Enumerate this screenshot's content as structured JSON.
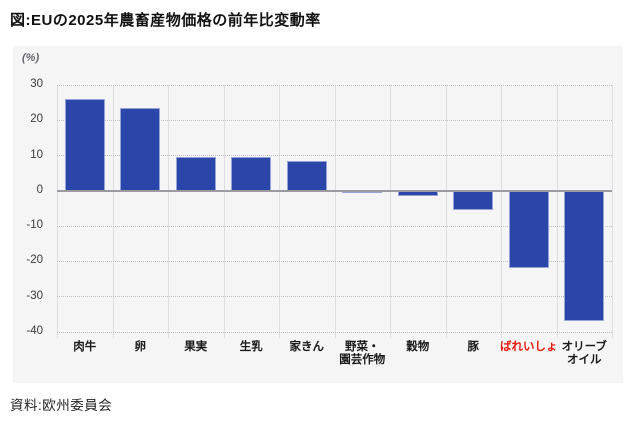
{
  "page": {
    "title": "図:EUの2025年農畜産物価格の前年比変動率",
    "source": "資料:欧州委員会"
  },
  "colors": {
    "bar_fill": "#2b46a8",
    "bar_border": "#97a3d6",
    "highlight_label": "#e8190f",
    "category_label": "#1a1a1a",
    "panel_background": "#f5f5f6"
  },
  "chart_data": {
    "type": "bar",
    "title": "図:EUの2025年農畜産物価格の前年比変動率",
    "unit_label": "(%)",
    "categories": [
      "肉牛",
      "卵",
      "果実",
      "生乳",
      "家きん",
      "野菜・\n園芸作物",
      "穀物",
      "豚",
      "ばれいしょ",
      "オリーブ\nオイル"
    ],
    "values": [
      26,
      23.5,
      9.5,
      9.5,
      8.5,
      -0.5,
      -1.5,
      -5.5,
      -22,
      -37
    ],
    "highlight_category_index": 8,
    "ylim": [
      -40,
      30
    ],
    "yticks": [
      30,
      20,
      10,
      0,
      -10,
      -20,
      -30,
      -40
    ],
    "grid": true,
    "legend": null,
    "xlabel": "",
    "ylabel": "(%)",
    "source": "資料:欧州委員会"
  }
}
